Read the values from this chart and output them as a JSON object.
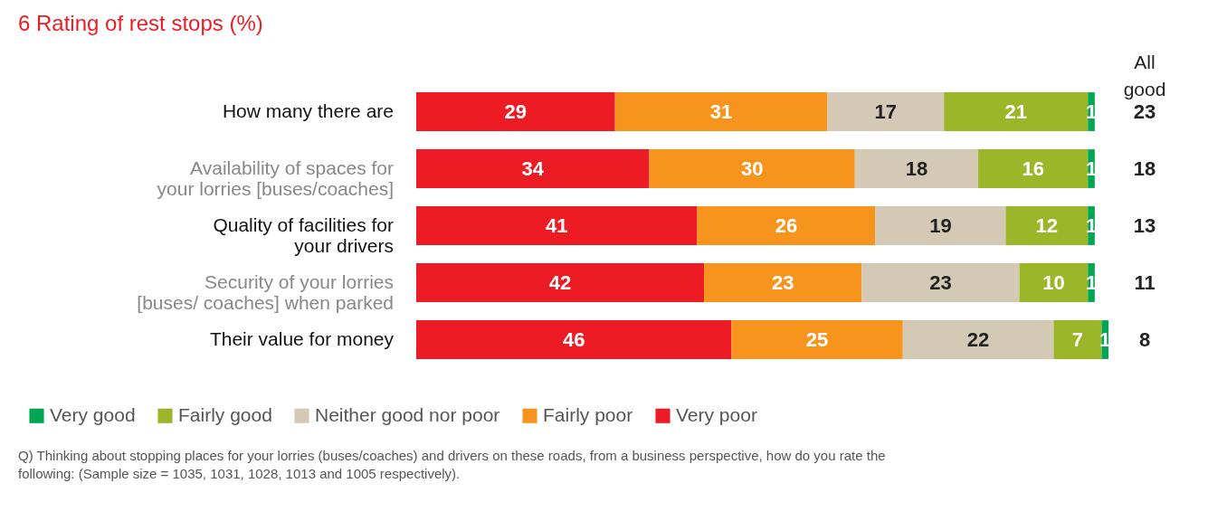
{
  "chart_data": {
    "type": "bar",
    "orientation": "horizontal",
    "stacked": true,
    "title": "6 Rating of rest stops (%)",
    "categories": [
      "How many there are",
      "Availability of spaces for your lorries [buses/coaches]",
      "Quality of facilities for your drivers",
      "Security of your lorries [buses/ coaches] when parked",
      "Their value for money"
    ],
    "series": [
      {
        "name": "Very poor",
        "color": "#ed1c24",
        "values": [
          29,
          34,
          41,
          42,
          46
        ]
      },
      {
        "name": "Fairly poor",
        "color": "#f7941d",
        "values": [
          31,
          30,
          26,
          23,
          25
        ]
      },
      {
        "name": "Neither good nor poor",
        "color": "#d3c9b4",
        "values": [
          17,
          18,
          19,
          23,
          22
        ]
      },
      {
        "name": "Fairly good",
        "color": "#9cb62a",
        "values": [
          21,
          16,
          12,
          10,
          7
        ]
      },
      {
        "name": "Very good",
        "color": "#00a651",
        "values": [
          1,
          1,
          1,
          1,
          1
        ]
      }
    ],
    "data_labels": true,
    "legend": "bottom left",
    "annotations": [
      "All good",
      "23",
      "18",
      "13",
      "11",
      "8",
      "Q) Thinking about stopping places for your lorries (buses/coaches) and drivers on these roads, from a business perspective, how do you rate the following: (Sample size = 1035, 1031, 1028, 1013 and 1005 respectively)."
    ]
  }
}
